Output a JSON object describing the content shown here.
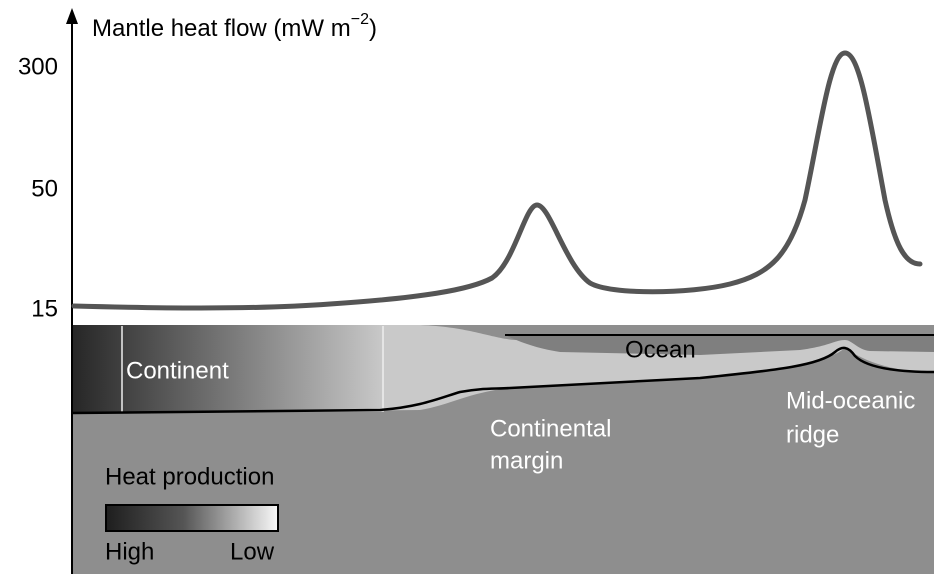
{
  "axis": {
    "label": "Mantle heat flow (mW m",
    "label_exponent": "−2",
    "label_end": ")",
    "ticks": [
      "300",
      "50",
      "15"
    ]
  },
  "regions": {
    "continent": "Continent",
    "ocean": "Ocean",
    "margin": [
      "Continental",
      "margin"
    ],
    "ridge": [
      "Mid-oceanic",
      "ridge"
    ]
  },
  "legend": {
    "title": "Heat production",
    "high": "High",
    "low": "Low"
  }
}
